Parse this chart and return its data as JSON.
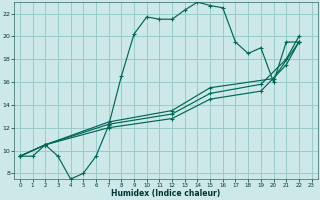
{
  "xlabel": "Humidex (Indice chaleur)",
  "bg_color": "#cce8e8",
  "grid_color": "#99cccc",
  "line_color": "#006655",
  "xlim": [
    -0.5,
    23.5
  ],
  "ylim": [
    7.5,
    23.0
  ],
  "xticks": [
    0,
    1,
    2,
    3,
    4,
    5,
    6,
    7,
    8,
    9,
    10,
    11,
    12,
    13,
    14,
    15,
    16,
    17,
    18,
    19,
    20,
    21,
    22,
    23
  ],
  "yticks": [
    8,
    10,
    12,
    14,
    16,
    18,
    20,
    22
  ],
  "line1_x": [
    0,
    1,
    2,
    3,
    4,
    5,
    6,
    7,
    8,
    9,
    10,
    11,
    12,
    13,
    14,
    15,
    16,
    17,
    18,
    19,
    20,
    21,
    22
  ],
  "line1_y": [
    9.5,
    9.5,
    10.5,
    9.5,
    7.5,
    8.0,
    9.5,
    12.2,
    16.5,
    20.2,
    21.7,
    21.5,
    21.5,
    22.3,
    23.0,
    22.7,
    22.5,
    19.5,
    18.5,
    19.0,
    16.0,
    19.5,
    19.5
  ],
  "line2_x": [
    0,
    2,
    7,
    12,
    15,
    19,
    21,
    22
  ],
  "line2_y": [
    9.5,
    10.5,
    12.0,
    12.8,
    14.5,
    15.2,
    17.5,
    19.5
  ],
  "line3_x": [
    0,
    2,
    7,
    12,
    15,
    19,
    21,
    22
  ],
  "line3_y": [
    9.5,
    10.5,
    12.3,
    13.2,
    15.0,
    15.8,
    18.0,
    20.0
  ],
  "line4_x": [
    0,
    2,
    7,
    12,
    15,
    20,
    22
  ],
  "line4_y": [
    9.5,
    10.5,
    12.5,
    13.5,
    15.5,
    16.3,
    19.5
  ]
}
